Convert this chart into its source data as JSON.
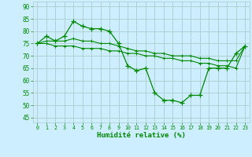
{
  "xlabel": "Humidité relative (%)",
  "bg_color": "#cceeff",
  "grid_color": "#aacccc",
  "line_color": "#008800",
  "xlim": [
    -0.5,
    23.5
  ],
  "ylim": [
    43,
    92
  ],
  "yticks": [
    45,
    50,
    55,
    60,
    65,
    70,
    75,
    80,
    85,
    90
  ],
  "xticks": [
    0,
    1,
    2,
    3,
    4,
    5,
    6,
    7,
    8,
    9,
    10,
    11,
    12,
    13,
    14,
    15,
    16,
    17,
    18,
    19,
    20,
    21,
    22,
    23
  ],
  "line1": [
    75,
    78,
    76,
    78,
    84,
    82,
    81,
    81,
    80,
    75,
    66,
    64,
    65,
    55,
    52,
    52,
    51,
    54,
    54,
    65,
    65,
    65,
    71,
    74
  ],
  "line2": [
    75,
    76,
    76,
    76,
    77,
    76,
    76,
    75,
    75,
    74,
    73,
    72,
    72,
    71,
    71,
    70,
    70,
    70,
    69,
    69,
    68,
    68,
    68,
    74
  ],
  "line3": [
    75,
    75,
    74,
    74,
    74,
    73,
    73,
    73,
    72,
    72,
    71,
    71,
    70,
    70,
    69,
    69,
    68,
    68,
    67,
    67,
    66,
    66,
    65,
    74
  ]
}
